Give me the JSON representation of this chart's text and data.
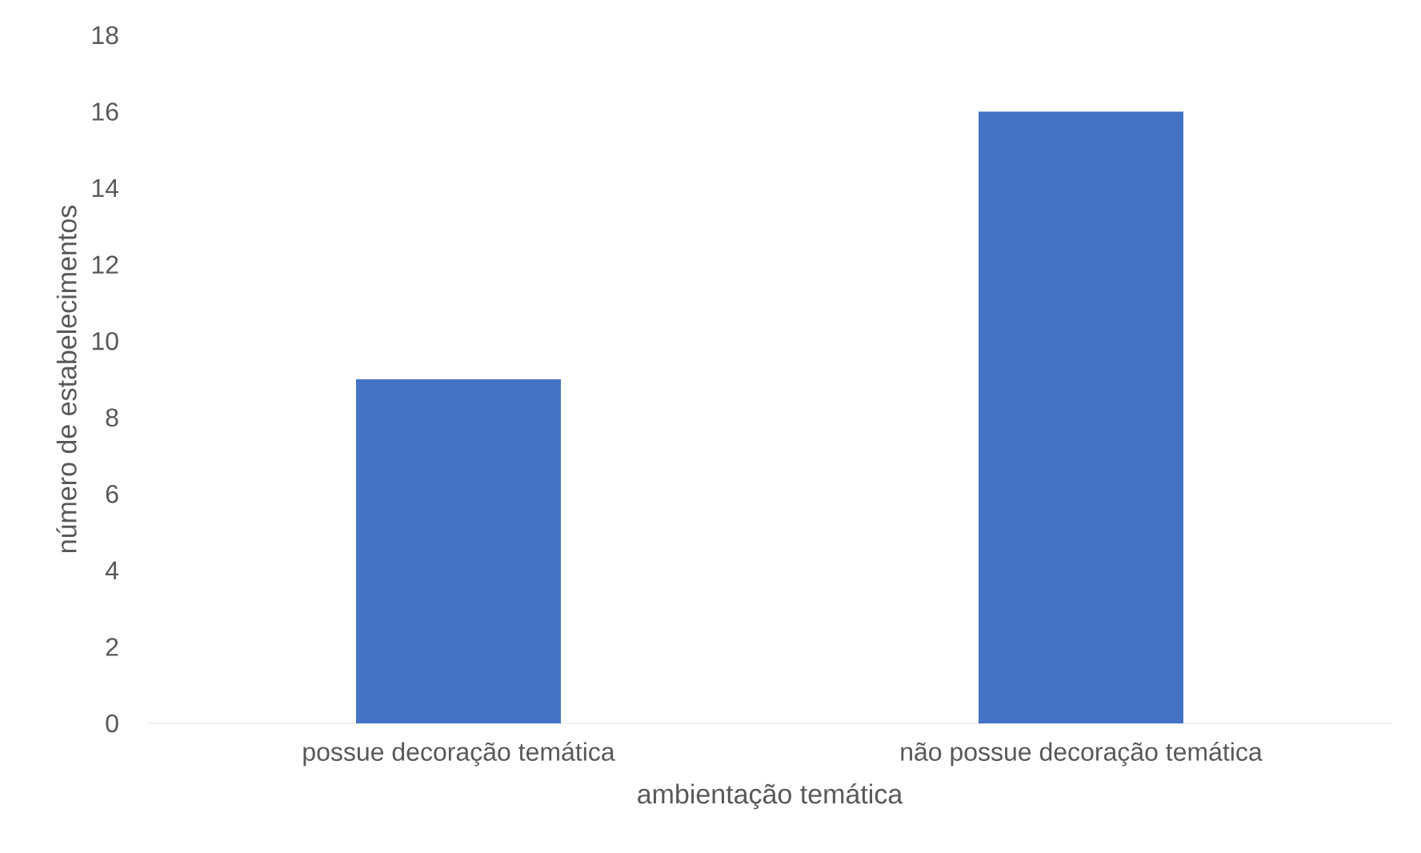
{
  "chart_data": {
    "type": "bar",
    "xlabel": "ambientação temática",
    "ylabel": "número de estabelecimentos",
    "categories": [
      "possue decoração temática",
      "não possue decoração temática"
    ],
    "values": [
      9,
      16
    ],
    "color": "#4472c4",
    "ylim": [
      0,
      18
    ],
    "yticks": [
      0,
      2,
      4,
      6,
      8,
      10,
      12,
      14,
      16,
      18
    ]
  }
}
